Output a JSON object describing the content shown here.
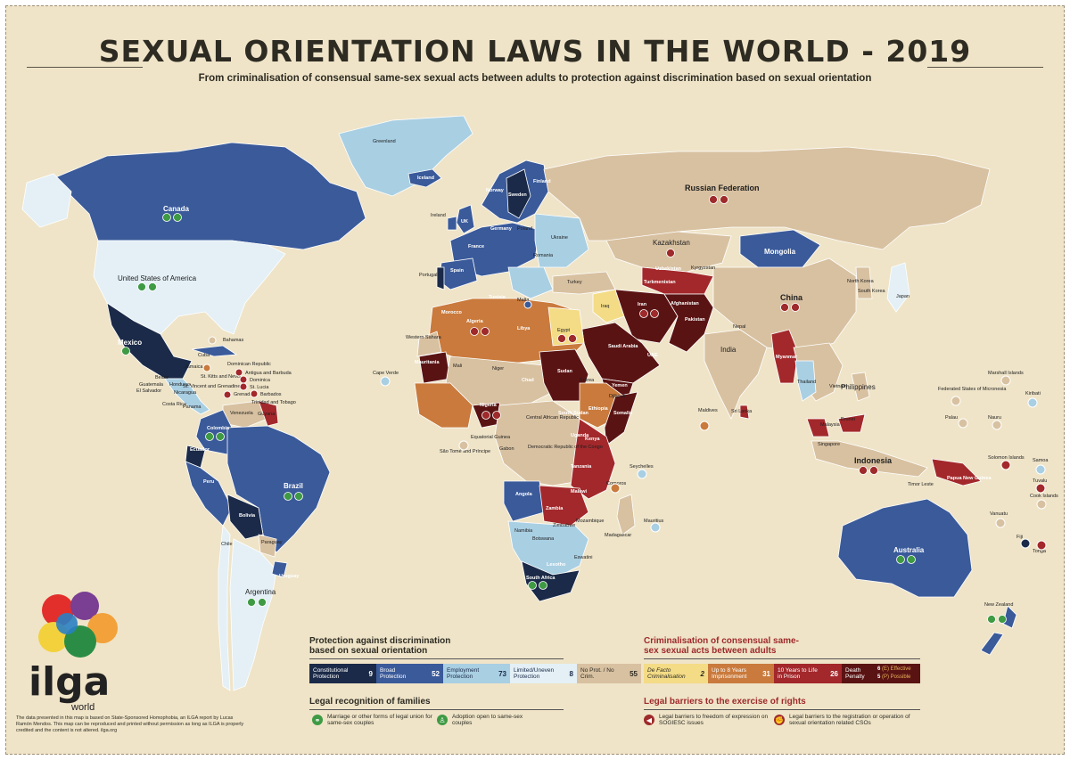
{
  "title": "SEXUAL ORIENTATION LAWS IN THE WORLD - 2019",
  "subtitle": "From criminalisation of consensual same-sex sexual acts between adults to protection against discrimination based on sexual orientation",
  "colors": {
    "background": "#efe4c8",
    "constitutional": "#1b2a48",
    "broad": "#3a5a9a",
    "employment": "#a9cfe3",
    "limited": "#e4f0f6",
    "no_protection": "#d8c1a1",
    "de_facto": "#f4dc86",
    "up_to_8": "#c97a3c",
    "ten_to_life": "#a3282b",
    "death": "#5a1313"
  },
  "countries": {
    "greenland": "Greenland",
    "canada": "Canada",
    "usa": "United States of America",
    "mexico": "Mexico",
    "bahamas": "Bahamas",
    "cuba": "Cuba",
    "jamaica": "Jamaica",
    "dominican_republic": "Dominican Republic",
    "antigua": "Antigua and Barbuda",
    "st_kitts": "St. Kitts and Nevis",
    "dominica": "Dominica",
    "st_lucia": "St. Lucia",
    "st_vincent": "St. Vincent and Grenadines",
    "grenada": "Grenada",
    "barbados": "Barbados",
    "trinidad": "Trinidad and Tobago",
    "belize": "Belize",
    "guatemala": "Guatemala",
    "honduras": "Honduras",
    "el_salvador": "El Salvador",
    "nicaragua": "Nicaragua",
    "costa_rica": "Costa Rica",
    "panama": "Panama",
    "venezuela": "Venezuela",
    "guyana": "Guyana",
    "colombia": "Colombia",
    "ecuador": "Ecuador",
    "peru": "Peru",
    "brazil": "Brazil",
    "bolivia": "Bolivia",
    "paraguay": "Paraguay",
    "chile": "Chile",
    "argentina": "Argentina",
    "uruguay": "Uruguay",
    "iceland": "Iceland",
    "ireland": "Ireland",
    "uk": "UK",
    "portugal": "Portugal",
    "spain": "Spain",
    "france": "France",
    "norway": "Norway",
    "sweden": "Sweden",
    "finland": "Finland",
    "germany": "Germany",
    "poland": "Poland",
    "ukraine": "Ukraine",
    "romania": "Romania",
    "turkey": "Turkey",
    "russia": "Russian Federation",
    "kazakhstan": "Kazakhstan",
    "mongolia": "Mongolia",
    "china": "China",
    "north_korea": "North Korea",
    "south_korea": "South Korea",
    "japan": "Japan",
    "turkmenistan": "Turkmenistan",
    "uzbekistan": "Uzbekistan",
    "kyrgyzstan": "Kyrgyzstan",
    "afghanistan": "Afghanistan",
    "pakistan": "Pakistan",
    "iran": "Iran",
    "iraq": "Iraq",
    "saudi_arabia": "Saudi Arabia",
    "yemen": "Yemen",
    "uae": "UAE",
    "india": "India",
    "nepal": "Nepal",
    "sri_lanka": "Sri Lanka",
    "maldives": "Maldives",
    "myanmar": "Myanmar",
    "thailand": "Thailand",
    "vietnam": "Vietnam",
    "philippines": "Philippines",
    "malaysia": "Malaysia",
    "brunei": "Brunei",
    "singapore": "Singapore",
    "indonesia": "Indonesia",
    "timor_leste": "Timor Leste",
    "papua_new_guinea": "Papua New Guinea",
    "australia": "Australia",
    "new_zealand": "New Zealand",
    "morocco": "Morocco",
    "algeria": "Algeria",
    "tunisia": "Tunisia",
    "libya": "Libya",
    "egypt": "Egypt",
    "western_sahara": "Western Sahara",
    "mauritania": "Mauritania",
    "mali": "Mali",
    "niger": "Niger",
    "chad": "Chad",
    "sudan": "Sudan",
    "eritrea": "Eritrea",
    "djibouti": "Djibouti",
    "ethiopia": "Ethiopia",
    "somalia": "Somalia",
    "south_sudan": "South Sudan",
    "car": "Central African Republic",
    "nigeria": "Nigeria",
    "cape_verde": "Cape Verde",
    "equatorial_guinea": "Equatorial Guinea",
    "sao_tome": "São Tomé and Príncipe",
    "gabon": "Gabon",
    "drc": "Democratic Republic of the Congo",
    "uganda": "Uganda",
    "kenya": "Kenya",
    "tanzania": "Tanzania",
    "seychelles": "Seychelles",
    "comoros": "Comoros",
    "angola": "Angola",
    "zambia": "Zambia",
    "malawi": "Malawi",
    "mozambique": "Mozambique",
    "zimbabwe": "Zimbabwe",
    "namibia": "Namibia",
    "botswana": "Botswana",
    "madagascar": "Madagascar",
    "mauritius": "Mauritius",
    "eswatini": "Eswatini",
    "lesotho": "Lesotho",
    "south_africa": "South Africa",
    "marshall_islands": "Marshall Islands",
    "micronesia": "Federated States of Micronesia",
    "kiribati": "Kiribati",
    "palau": "Palau",
    "nauru": "Nauru",
    "solomon_islands": "Solomon Islands",
    "samoa": "Samoa",
    "tuvalu": "Tuvalu",
    "cook_islands": "Cook Islands",
    "vanuatu": "Vanuatu",
    "fiji": "Fiji",
    "tonga": "Tonga",
    "malta": "Malta"
  },
  "legend": {
    "protection_heading": "Protection against discrimination based on sexual orientation",
    "criminalisation_heading": "Criminalisation of consensual same-sex sexual acts between adults",
    "constitutional": {
      "label": "Constitutional Protection",
      "count": "9"
    },
    "broad": {
      "label": "Broad Protection",
      "count": "52"
    },
    "employment": {
      "label": "Employment Protection",
      "count": "73"
    },
    "limited": {
      "label": "Limited/Uneven Protection",
      "count": "8"
    },
    "no_prot": {
      "label": "No Prot. / No Crim.",
      "count": "55"
    },
    "de_facto": {
      "label": "De Facto Criminalisation",
      "count": "2"
    },
    "up_to_8": {
      "label": "Up to 8 Years Imprisonment",
      "count": "31"
    },
    "ten_to_life": {
      "label": "10 Years to Life in Prison",
      "count": "26"
    },
    "death": {
      "label": "Death Penalty",
      "effective": "6",
      "effective_label": "(E) Effective",
      "possible": "5",
      "possible_label": "(P) Possible"
    },
    "families_heading": "Legal recognition of families",
    "marriage": "Marriage or other forms of legal union for same-sex couples",
    "adoption": "Adoption open to same-sex couples",
    "barriers_heading": "Legal barriers to the exercise of rights",
    "expression": "Legal barriers to freedom of expression on SOGIESC issues",
    "registration": "Legal barriers to the registration or operation of sexual orientation related CSOs"
  },
  "logo": {
    "name": "ilga",
    "sub": "world"
  },
  "source_text": "The data presented in this map is based on State-Sponsored Homophobia, an ILGA report by Lucas Ramón Mendos. This map can be reproduced and printed without permission as long as ILGA is properly credited and the content is not altered. ilga.org"
}
